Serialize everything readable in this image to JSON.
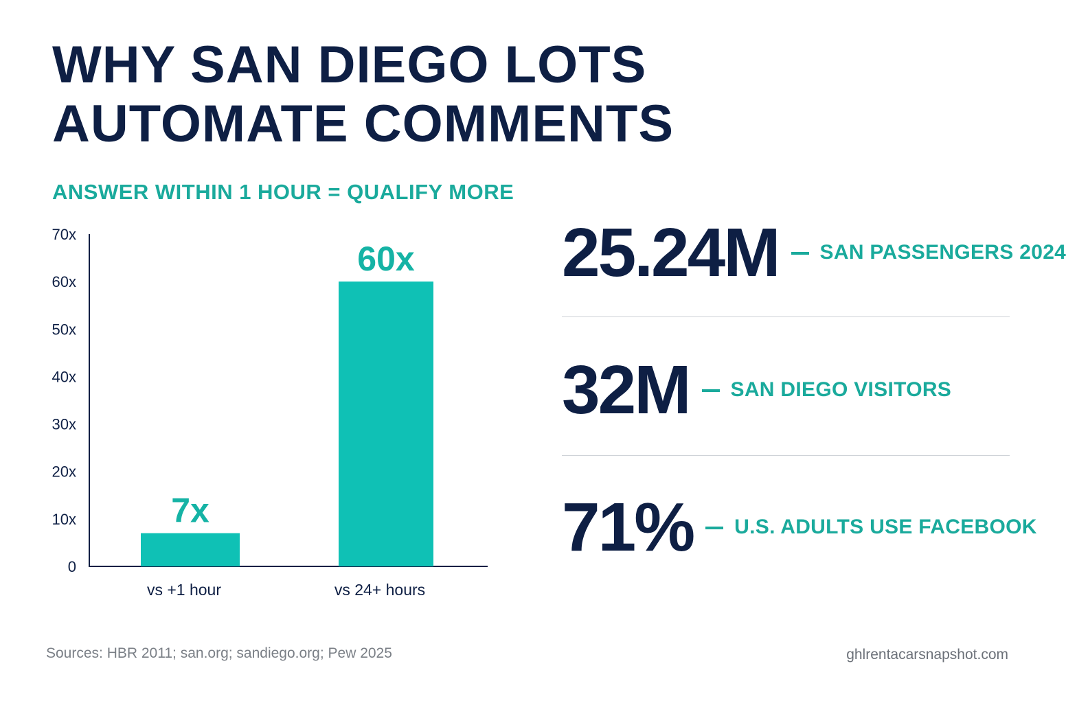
{
  "title_lines": [
    "WHY SAN DIEGO LOTS",
    "AUTOMATE COMMENTS"
  ],
  "subtitle": "ANSWER WITHIN 1 HOUR = QUALIFY MORE",
  "colors": {
    "navy": "#0e1f44",
    "teal": "#0fc1b5",
    "teal_text": "#1aaa9c"
  },
  "chart_data": {
    "type": "bar",
    "categories": [
      "vs +1 hour",
      "vs 24+ hours"
    ],
    "values": [
      7,
      60
    ],
    "data_labels": [
      "7x",
      "60x"
    ],
    "yticks": [
      "0",
      "10x",
      "20x",
      "30x",
      "40x",
      "50x",
      "60x",
      "70x"
    ],
    "ylim": [
      0,
      70
    ],
    "grid": false,
    "bar_color": "#0fc1b5"
  },
  "stats": [
    {
      "value": "25.24M",
      "label": "SAN PASSENGERS 2024"
    },
    {
      "value": "32M",
      "label": "SAN DIEGO VISITORS"
    },
    {
      "value": "71%",
      "label": "U.S. ADULTS USE FACEBOOK"
    }
  ],
  "footer": {
    "sources": "Sources: HBR 2011; san.org; sandiego.org; Pew 2025",
    "site": "ghlrentacarsnapshot.com"
  }
}
